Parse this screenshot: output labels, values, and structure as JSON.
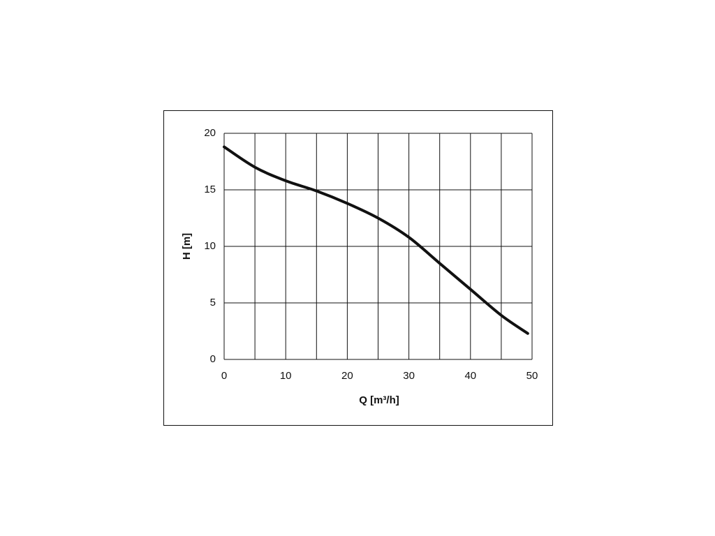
{
  "chart_data": {
    "type": "line",
    "x_label": "Q [m³/h]",
    "y_label": "H [m]",
    "x": [
      0,
      5,
      10,
      15,
      20,
      25,
      30,
      35,
      40,
      45,
      49.3
    ],
    "series": [
      {
        "color": "#111111",
        "values": [
          18.8,
          17.0,
          15.8,
          14.9,
          13.8,
          12.5,
          10.8,
          8.5,
          6.2,
          3.9,
          2.3
        ]
      }
    ],
    "xlim": [
      0,
      50
    ],
    "xticks": [
      0,
      10,
      20,
      30,
      40,
      50
    ],
    "x_minor_grid": [
      5,
      15,
      25,
      35,
      45
    ],
    "ylim": [
      0,
      20
    ],
    "yticks": [
      0,
      5,
      10,
      15,
      20
    ],
    "grid": true
  }
}
